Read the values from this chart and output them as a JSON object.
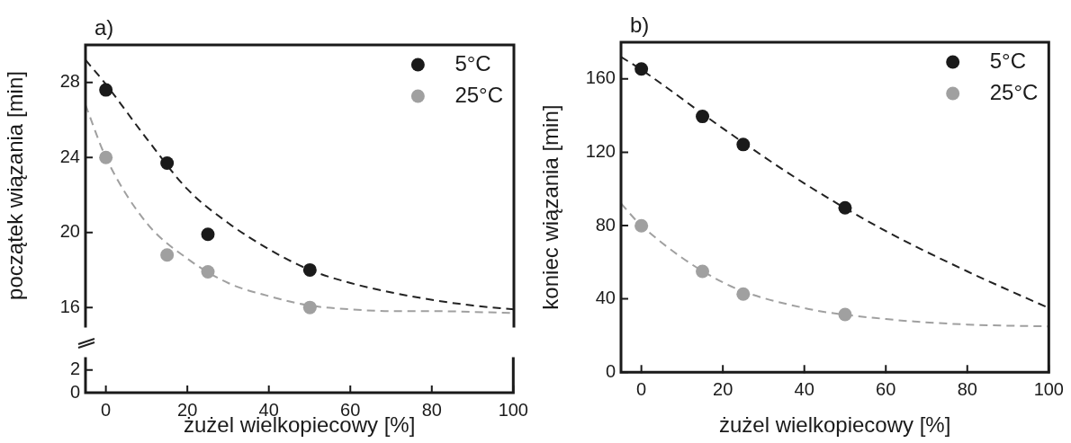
{
  "chart_data": [
    {
      "type": "scatter",
      "title": "a)",
      "ylabel": "początek wiązania [min]",
      "xlim": [
        -5,
        100
      ],
      "ylim": [
        15,
        30
      ],
      "yticks": [
        16,
        20,
        24,
        28
      ],
      "tick_labels": "y",
      "legend": "top right",
      "grid": false,
      "x": [
        0,
        15,
        25,
        50
      ],
      "series": [
        {
          "name": "5°C",
          "color": "#1a1a1a",
          "marker": "circle",
          "values": [
            27.6,
            23.7,
            19.9,
            18.0
          ]
        },
        {
          "name": "25°C",
          "color": "#a0a0a0",
          "marker": "circle",
          "values": [
            24.0,
            18.8,
            17.9,
            16.0
          ]
        },
        {
          "type": "line",
          "line_style": "dashed",
          "marker": "none",
          "color": "#222222",
          "x": [
            -5,
            0,
            10,
            20,
            30,
            40,
            50,
            60,
            70,
            80,
            90,
            100
          ],
          "values": [
            29.2,
            27.9,
            25.0,
            22.3,
            20.5,
            19.1,
            18.0,
            17.3,
            16.8,
            16.4,
            16.1,
            15.9
          ]
        },
        {
          "type": "line",
          "line_style": "dashed",
          "marker": "none",
          "color": "#a0a0a0",
          "x": [
            -5,
            0,
            10,
            20,
            30,
            40,
            50,
            60,
            70,
            80,
            100
          ],
          "values": [
            26.8,
            24.0,
            20.5,
            18.6,
            17.3,
            16.6,
            16.1,
            15.9,
            15.8,
            15.8,
            15.7
          ]
        }
      ]
    },
    {
      "type": "scatter",
      "xlabel": "żużel wielkopiecowy [%]",
      "xlim": [
        -5,
        100
      ],
      "xticks": [
        0,
        20,
        40,
        60,
        80,
        100
      ],
      "ylim": [
        0,
        3
      ],
      "yticks": [
        0,
        2
      ],
      "grid": false
    },
    {
      "type": "scatter",
      "title": "b)",
      "xlabel": "żużel wielkopiecowy [%]",
      "ylabel": "koniec wiązania [min]",
      "xlim": [
        -5,
        100
      ],
      "xticks": [
        0,
        20,
        40,
        60,
        80,
        100
      ],
      "ylim": [
        0,
        180
      ],
      "yticks": [
        0,
        40,
        80,
        120,
        160
      ],
      "legend": "top right",
      "grid": false,
      "x": [
        0,
        15,
        25,
        50
      ],
      "series": [
        {
          "name": "5°C",
          "color": "#1a1a1a",
          "marker": "circle",
          "values": [
            165.4,
            139.5,
            124.2,
            89.7
          ]
        },
        {
          "name": "25°C",
          "color": "#a0a0a0",
          "marker": "circle",
          "values": [
            79.9,
            55.0,
            42.6,
            31.5
          ]
        },
        {
          "type": "line",
          "line_style": "dashed",
          "marker": "none",
          "color": "#222222",
          "x": [
            -5,
            0,
            20,
            40,
            60,
            80,
            100
          ],
          "values": [
            172,
            165,
            133,
            103,
            77,
            55,
            35
          ]
        },
        {
          "type": "line",
          "line_style": "dashed",
          "marker": "none",
          "color": "#a0a0a0",
          "x": [
            -5,
            0,
            20,
            40,
            60,
            80,
            100
          ],
          "values": [
            92,
            80,
            49,
            35,
            29,
            26,
            25
          ]
        }
      ]
    }
  ]
}
